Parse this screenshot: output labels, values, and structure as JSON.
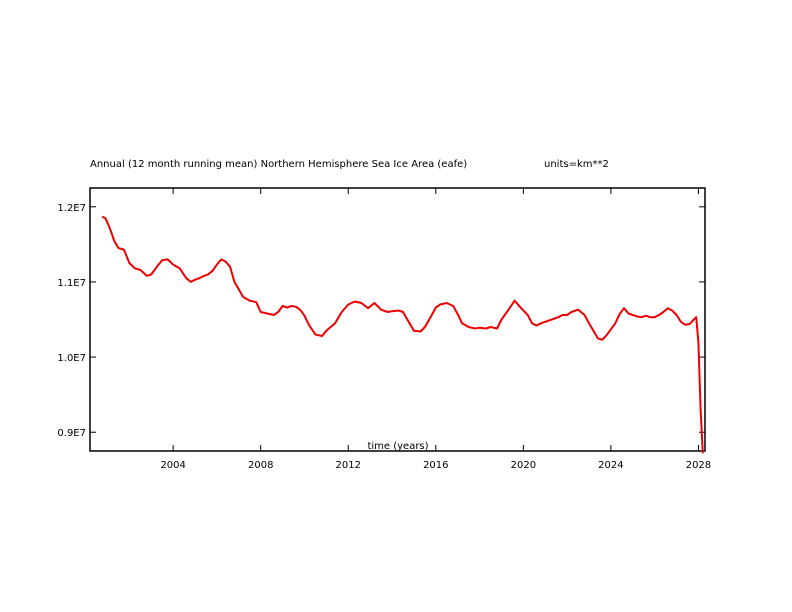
{
  "chart_data": {
    "type": "line",
    "title": "Annual (12 month running mean) Northern Hemisphere Sea Ice Area (eafe)",
    "units_label": "units=km**2",
    "xlabel": "time (years)",
    "ylabel": "",
    "xlim": [
      2000.2,
      2028.3
    ],
    "ylim": [
      8750000,
      12250000
    ],
    "x_ticks": [
      2004,
      2008,
      2012,
      2016,
      2020,
      2024,
      2028
    ],
    "x_tick_labels": [
      "2004",
      "2008",
      "2012",
      "2016",
      "2020",
      "2024",
      "2028"
    ],
    "y_ticks": [
      9000000,
      10000000,
      11000000,
      12000000
    ],
    "y_tick_labels": [
      "0.9E7",
      "1.0E7",
      "1.1E7",
      "1.2E7"
    ],
    "grid": false,
    "line_color": "#ee0000",
    "series": [
      {
        "x": [
          2000.75,
          2000.9,
          2001.1,
          2001.3,
          2001.5,
          2001.75,
          2002.0,
          2002.25,
          2002.5,
          2002.8,
          2003.0,
          2003.25,
          2003.5,
          2003.75,
          2004.0,
          2004.3,
          2004.6,
          2004.8,
          2005.0,
          2005.2,
          2005.4,
          2005.6,
          2005.8,
          2006.0,
          2006.2,
          2006.4,
          2006.6,
          2006.8,
          2007.0,
          2007.2,
          2007.5,
          2007.8,
          2008.0,
          2008.3,
          2008.6,
          2008.8,
          2009.0,
          2009.2,
          2009.4,
          2009.6,
          2009.8,
          2010.0,
          2010.2,
          2010.5,
          2010.8,
          2011.0,
          2011.2,
          2011.4,
          2011.7,
          2012.0,
          2012.3,
          2012.6,
          2012.9,
          2013.2,
          2013.5,
          2013.8,
          2014.0,
          2014.3,
          2014.5,
          2014.8,
          2015.0,
          2015.3,
          2015.5,
          2015.8,
          2016.0,
          2016.2,
          2016.5,
          2016.8,
          2017.0,
          2017.2,
          2017.5,
          2017.8,
          2018.0,
          2018.3,
          2018.5,
          2018.8,
          2019.0,
          2019.3,
          2019.6,
          2019.9,
          2020.2,
          2020.4,
          2020.6,
          2020.8,
          2021.0,
          2021.3,
          2021.6,
          2021.8,
          2022.0,
          2022.2,
          2022.5,
          2022.8,
          2023.0,
          2023.2,
          2023.4,
          2023.6,
          2023.8,
          2024.0,
          2024.2,
          2024.4,
          2024.6,
          2024.8,
          2025.0,
          2025.2,
          2025.4,
          2025.6,
          2025.8,
          2026.0,
          2026.2,
          2026.4,
          2026.6,
          2026.8,
          2027.0,
          2027.2,
          2027.4,
          2027.6,
          2027.75,
          2027.9,
          2028.0,
          2028.1,
          2028.2
        ],
        "y": [
          11870000,
          11850000,
          11720000,
          11550000,
          11450000,
          11430000,
          11250000,
          11180000,
          11160000,
          11080000,
          11100000,
          11200000,
          11290000,
          11300000,
          11230000,
          11180000,
          11050000,
          11000000,
          11030000,
          11050000,
          11080000,
          11100000,
          11150000,
          11230000,
          11300000,
          11270000,
          11200000,
          11000000,
          10900000,
          10800000,
          10750000,
          10730000,
          10600000,
          10580000,
          10560000,
          10600000,
          10680000,
          10660000,
          10680000,
          10670000,
          10630000,
          10550000,
          10430000,
          10300000,
          10280000,
          10350000,
          10400000,
          10450000,
          10600000,
          10700000,
          10740000,
          10720000,
          10650000,
          10720000,
          10630000,
          10600000,
          10610000,
          10620000,
          10600000,
          10450000,
          10350000,
          10340000,
          10400000,
          10550000,
          10660000,
          10700000,
          10720000,
          10680000,
          10570000,
          10450000,
          10400000,
          10380000,
          10390000,
          10380000,
          10400000,
          10380000,
          10500000,
          10620000,
          10750000,
          10650000,
          10560000,
          10450000,
          10420000,
          10450000,
          10470000,
          10500000,
          10530000,
          10560000,
          10560000,
          10600000,
          10630000,
          10560000,
          10450000,
          10350000,
          10250000,
          10230000,
          10290000,
          10370000,
          10450000,
          10570000,
          10650000,
          10580000,
          10560000,
          10540000,
          10530000,
          10550000,
          10530000,
          10530000,
          10560000,
          10600000,
          10650000,
          10620000,
          10560000,
          10470000,
          10430000,
          10440000,
          10490000,
          10530000,
          10200000,
          9300000,
          8720000
        ]
      }
    ]
  }
}
